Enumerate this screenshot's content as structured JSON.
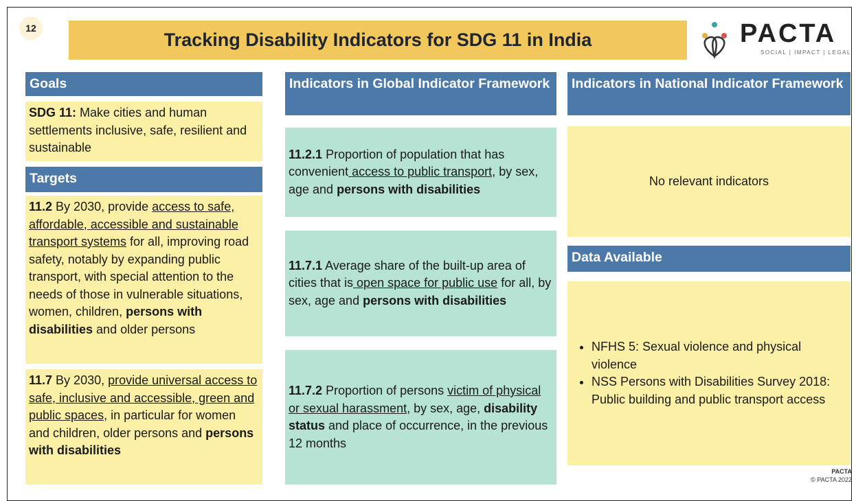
{
  "page_number": "12",
  "title": "Tracking Disability Indicators for SDG 11 in India",
  "logo": {
    "name": "PACTA",
    "tagline": "SOCIAL | IMPACT | LEGAL"
  },
  "goals": {
    "heading": "Goals",
    "body": [
      {
        "text": "SDG 11:",
        "bold": true
      },
      {
        "text": " Make cities and human settlements inclusive, safe, resilient and sustainable"
      }
    ]
  },
  "targets": {
    "heading": "Targets",
    "items": [
      [
        {
          "text": "11.2",
          "bold": true
        },
        {
          "text": " By 2030, provide "
        },
        {
          "text": "access to safe, affordable, accessible and sustainable transport systems",
          "underline": true
        },
        {
          "text": " for all, improving road safety, notably by expanding public transport, with special attention to the needs of those in vulnerable situations, women, children, "
        },
        {
          "text": "persons with disabilities",
          "bold": true
        },
        {
          "text": " and older persons"
        }
      ],
      [
        {
          "text": "11.7",
          "bold": true
        },
        {
          "text": " By 2030, "
        },
        {
          "text": "provide universal access to safe, inclusive and accessible, green and public spaces",
          "underline": true
        },
        {
          "text": ", in particular for women and children, older persons and "
        },
        {
          "text": "persons with disabilities",
          "bold": true
        }
      ]
    ]
  },
  "global": {
    "heading": "Indicators in Global Indicator Framework",
    "items": [
      [
        {
          "text": "11.2.1",
          "bold": true
        },
        {
          "text": " Proportion of population that has convenient"
        },
        {
          "text": " access to public transport",
          "underline": true
        },
        {
          "text": ", by sex, age and "
        },
        {
          "text": "persons with disabilities",
          "bold": true
        }
      ],
      [
        {
          "text": "11.7.1",
          "bold": true
        },
        {
          "text": " Average share of the built-up area of cities that is"
        },
        {
          "text": " open space for public use",
          "underline": true
        },
        {
          "text": " for all, by sex, age and "
        },
        {
          "text": "persons with disabilities",
          "bold": true
        }
      ],
      [
        {
          "text": "11.7.2",
          "bold": true
        },
        {
          "text": " Proportion of persons "
        },
        {
          "text": "victim of physical or sexual harassment",
          "underline": true
        },
        {
          "text": ", by sex, age, "
        },
        {
          "text": "disability status",
          "bold": true
        },
        {
          "text": " and place of occurrence, in the previous 12 months"
        }
      ]
    ]
  },
  "national": {
    "heading": "Indicators in National Indicator Framework",
    "body": "No relevant indicators"
  },
  "data_available": {
    "heading": "Data Available",
    "items": [
      "NFHS 5: Sexual violence and physical violence",
      "NSS Persons with Disabilities Survey 2018: Public building and public transport access"
    ]
  },
  "footer": {
    "logo": "PACTA",
    "copyright": "© PACTA 2022"
  }
}
